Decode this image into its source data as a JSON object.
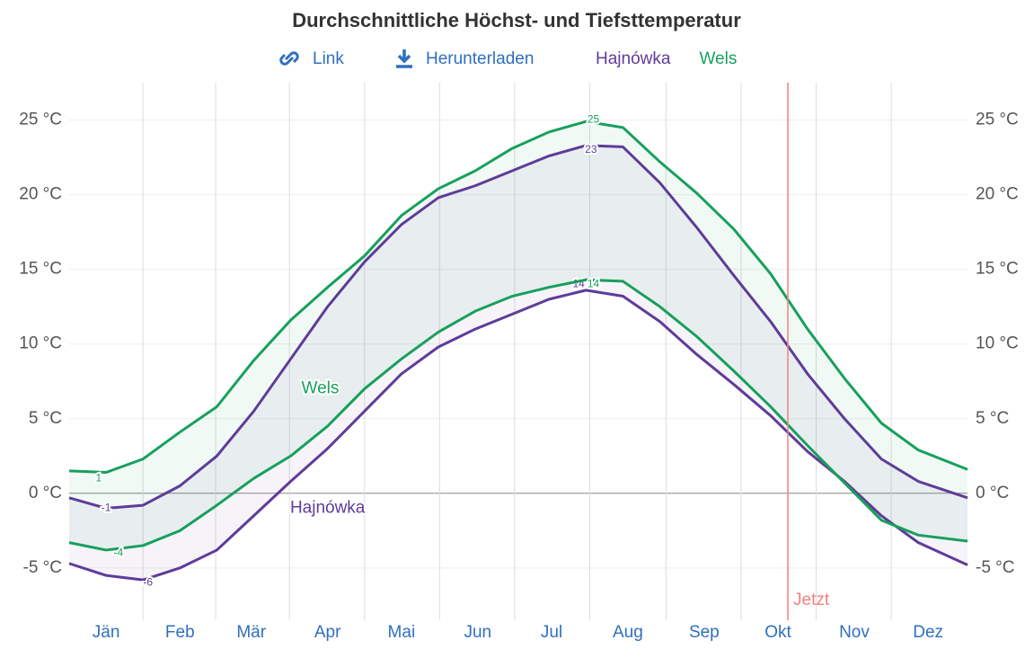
{
  "chart_data": {
    "type": "line",
    "title": "Durchschnittliche Höchst- und Tiefsttemperatur",
    "links": [
      "Link",
      "Herunterladen"
    ],
    "x": [
      0,
      15,
      30,
      45,
      60,
      75,
      90,
      105,
      120,
      135,
      150,
      165,
      180,
      195,
      210,
      225,
      240,
      255,
      270,
      285,
      300,
      315,
      330,
      345,
      365
    ],
    "xlim": [
      0,
      365
    ],
    "xticks": [
      {
        "value": 15,
        "label": "Jän"
      },
      {
        "value": 45,
        "label": "Feb"
      },
      {
        "value": 74,
        "label": "Mär"
      },
      {
        "value": 105,
        "label": "Apr"
      },
      {
        "value": 135,
        "label": "Mai"
      },
      {
        "value": 166,
        "label": "Jun"
      },
      {
        "value": 196,
        "label": "Jul"
      },
      {
        "value": 227,
        "label": "Aug"
      },
      {
        "value": 258,
        "label": "Sep"
      },
      {
        "value": 288,
        "label": "Okt"
      },
      {
        "value": 319,
        "label": "Nov"
      },
      {
        "value": 349,
        "label": "Dez"
      }
    ],
    "ylim": [
      -8.5,
      27.5
    ],
    "yticks": [
      {
        "value": -5,
        "label": "-5 °C"
      },
      {
        "value": 0,
        "label": "0 °C"
      },
      {
        "value": 5,
        "label": "5 °C"
      },
      {
        "value": 10,
        "label": "10 °C"
      },
      {
        "value": 15,
        "label": "15 °C"
      },
      {
        "value": 20,
        "label": "20 °C"
      },
      {
        "value": 25,
        "label": "25 °C"
      }
    ],
    "grid": true,
    "series": [
      {
        "name": "Hajnówka",
        "color": "#5e3c99",
        "high": [
          -0.3,
          -1.0,
          -0.8,
          0.5,
          2.5,
          5.5,
          9.0,
          12.5,
          15.5,
          18.0,
          19.8,
          20.6,
          21.6,
          22.6,
          23.3,
          23.2,
          20.8,
          17.8,
          14.6,
          11.5,
          8.0,
          5.0,
          2.3,
          0.8,
          -0.3
        ],
        "low": [
          -4.7,
          -5.5,
          -5.8,
          -5.0,
          -3.8,
          -1.5,
          0.8,
          3.0,
          5.5,
          8.0,
          9.8,
          11.0,
          12.0,
          13.0,
          13.6,
          13.2,
          11.5,
          9.3,
          7.3,
          5.2,
          2.8,
          0.8,
          -1.5,
          -3.3,
          -4.8
        ],
        "point_labels": [
          {
            "x": 15,
            "value": -1
          },
          {
            "x": 32,
            "value": -6
          },
          {
            "x": 212,
            "value": 23
          },
          {
            "x": 207,
            "value": 14
          }
        ],
        "name_label_x": 105,
        "name_label_y": -1
      },
      {
        "name": "Wels",
        "color": "#17a05d",
        "high": [
          1.5,
          1.4,
          2.3,
          4.1,
          5.8,
          8.9,
          11.6,
          13.8,
          15.9,
          18.6,
          20.4,
          21.6,
          23.1,
          24.2,
          24.9,
          24.5,
          22.2,
          20.1,
          17.7,
          14.7,
          11.0,
          7.7,
          4.7,
          2.9,
          1.6
        ],
        "low": [
          -3.3,
          -3.8,
          -3.5,
          -2.5,
          -0.8,
          1.0,
          2.5,
          4.5,
          7.0,
          9.0,
          10.8,
          12.2,
          13.2,
          13.8,
          14.3,
          14.2,
          12.5,
          10.5,
          8.2,
          5.8,
          3.2,
          0.7,
          -1.8,
          -2.8,
          -3.2
        ],
        "point_labels": [
          {
            "x": 12,
            "value": 1
          },
          {
            "x": 20,
            "value": -4
          },
          {
            "x": 213,
            "value": 25
          },
          {
            "x": 213,
            "value": 14
          }
        ],
        "name_label_x": 102,
        "name_label_y": 7
      }
    ],
    "annotation": {
      "x": 292,
      "label": "Jetzt",
      "color": "#f28080"
    }
  }
}
